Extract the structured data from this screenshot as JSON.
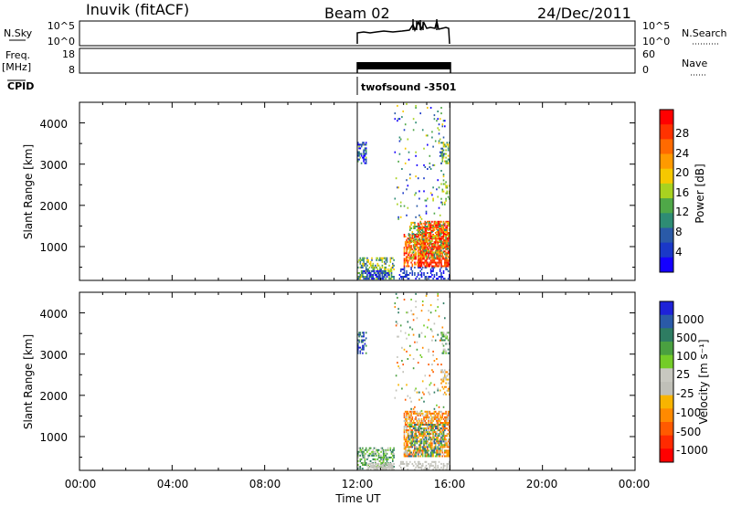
{
  "header": {
    "station": "Inuvik (fitACF)",
    "beam": "Beam 02",
    "date": "24/Dec/2011"
  },
  "strips": {
    "nsky_label": "N.Sky",
    "nsky_ticks": [
      "10^5",
      "10^0"
    ],
    "nsearch_label": "N.Search",
    "nsearch_ticks": [
      "10^5",
      "10^0"
    ],
    "freq_label": "Freq.",
    "freq_unit": "[MHz]",
    "freq_ticks": [
      "18",
      "8"
    ],
    "nave_label": "Nave",
    "nave_ticks": [
      "60",
      "0"
    ],
    "cpid_label": "CPID",
    "cpid_value": "twofsound -3501"
  },
  "chart_data": [
    {
      "type": "heatmap",
      "parameter": "power",
      "xlabel": "",
      "ylabel": "Slant Range [km]",
      "xlim": [
        0,
        24
      ],
      "ylim": [
        180,
        4500
      ],
      "yticks": [
        "1000",
        "2000",
        "3000",
        "4000"
      ],
      "colorbar": {
        "label": "Power [dB]",
        "ticks": [
          "28",
          "24",
          "20",
          "16",
          "12",
          "8",
          "4"
        ],
        "colors": [
          "#ff0000",
          "#ff3200",
          "#ff6a00",
          "#ff9a00",
          "#f6c800",
          "#a8d220",
          "#4fa848",
          "#2e8c74",
          "#2a5aa8",
          "#1a38c8",
          "#1400ff"
        ]
      },
      "observation_window_hours": [
        12,
        16
      ]
    },
    {
      "type": "heatmap",
      "parameter": "velocity",
      "xlabel": "Time UT",
      "ylabel": "Slant Range [km]",
      "xlim": [
        0,
        24
      ],
      "ylim": [
        180,
        4500
      ],
      "xticks": [
        "00:00",
        "04:00",
        "08:00",
        "12:00",
        "16:00",
        "20:00",
        "00:00"
      ],
      "yticks": [
        "1000",
        "2000",
        "3000",
        "4000"
      ],
      "colorbar": {
        "label": "Velocity [m s⁻¹]",
        "ticks": [
          "1000",
          "500",
          "100",
          "25",
          "-25",
          "-100",
          "-500",
          "-1000"
        ],
        "colors": [
          "#1e22d8",
          "#2a5aa8",
          "#2e7c62",
          "#4aa040",
          "#74cc28",
          "#c8c8c0",
          "#c0c0b8",
          "#f8b400",
          "#ff8a00",
          "#ff5a00",
          "#ff2a00",
          "#ff0000"
        ]
      },
      "observation_window_hours": [
        12,
        16
      ]
    }
  ],
  "colors": {
    "axis": "#000000",
    "background": "#ffffff"
  }
}
